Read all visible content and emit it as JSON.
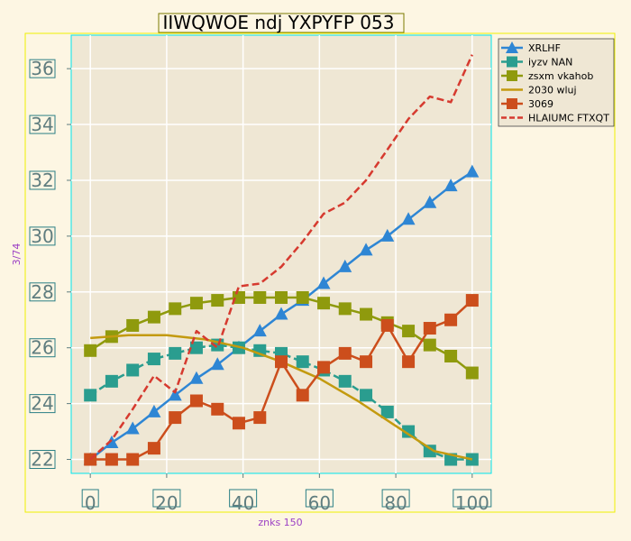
{
  "chart_data": {
    "type": "line",
    "title": "IIWQWOE ndj YXPYFP 053",
    "xlabel": "znks 150",
    "ylabel": "3/74",
    "xlim": [
      -5,
      105
    ],
    "ylim": [
      21.5,
      37.2
    ],
    "xticks": [
      "0",
      "20",
      "40",
      "60",
      "80",
      "100"
    ],
    "yticks": [
      "22",
      "24",
      "26",
      "28",
      "30",
      "32",
      "34",
      "36"
    ],
    "grid": true,
    "legend_position": "top-right",
    "series": [
      {
        "name": "XRLHF",
        "color": "#2e86d4",
        "marker": "triangle",
        "dash": "solid",
        "x": [
          0,
          5.6,
          11.1,
          16.7,
          22.2,
          27.8,
          33.3,
          38.9,
          44.4,
          50,
          55.6,
          61.1,
          66.7,
          72.2,
          77.8,
          83.3,
          88.9,
          94.4,
          100
        ],
        "y": [
          22.0,
          22.6,
          23.1,
          23.7,
          24.3,
          24.9,
          25.4,
          26.0,
          26.6,
          27.2,
          27.7,
          28.3,
          28.9,
          29.5,
          30.0,
          30.6,
          31.2,
          31.8,
          32.3
        ]
      },
      {
        "name": "iyzv NAN",
        "color": "#2a9d8f",
        "marker": "square",
        "dash": "dashed",
        "x": [
          0,
          5.6,
          11.1,
          16.7,
          22.2,
          27.8,
          33.3,
          38.9,
          44.4,
          50,
          55.6,
          61.1,
          66.7,
          72.2,
          77.8,
          83.3,
          88.9,
          94.4,
          100
        ],
        "y": [
          24.3,
          24.8,
          25.2,
          25.6,
          25.8,
          26.0,
          26.1,
          26.0,
          25.9,
          25.8,
          25.5,
          25.2,
          24.8,
          24.3,
          23.7,
          23.0,
          22.3,
          22.0,
          22.0
        ]
      },
      {
        "name": "zsxm vkahob",
        "color": "#8f9a0d",
        "marker": "square",
        "dash": "solid",
        "x": [
          0,
          5.6,
          11.1,
          16.7,
          22.2,
          27.8,
          33.3,
          38.9,
          44.4,
          50,
          55.6,
          61.1,
          66.7,
          72.2,
          77.8,
          83.3,
          88.9,
          94.4,
          100
        ],
        "y": [
          25.9,
          26.4,
          26.8,
          27.1,
          27.4,
          27.6,
          27.7,
          27.8,
          27.8,
          27.8,
          27.8,
          27.6,
          27.4,
          27.2,
          26.9,
          26.6,
          26.1,
          25.7,
          25.1
        ]
      },
      {
        "name": "2030 wluj",
        "color": "#c39a0f",
        "marker": "none",
        "dash": "solid",
        "x": [
          0,
          10,
          20,
          30,
          40,
          50,
          60,
          70,
          80,
          90,
          100
        ],
        "y": [
          26.35,
          26.45,
          26.45,
          26.3,
          26.0,
          25.5,
          24.9,
          24.1,
          23.2,
          22.3,
          22.0
        ]
      },
      {
        "name": "3069",
        "color": "#cc4e1c",
        "marker": "square",
        "dash": "solid",
        "x": [
          0,
          5.6,
          11.1,
          16.7,
          22.2,
          27.8,
          33.3,
          38.9,
          44.4,
          50,
          55.6,
          61.1,
          66.7,
          72.2,
          77.8,
          83.3,
          88.9,
          94.4,
          100
        ],
        "y": [
          22.0,
          22.0,
          22.0,
          22.4,
          23.5,
          24.1,
          23.8,
          23.3,
          23.5,
          25.5,
          24.3,
          25.3,
          25.8,
          25.5,
          26.8,
          25.5,
          26.7,
          27.0,
          27.7
        ]
      },
      {
        "name": "HLAIUMC FTXQT",
        "color": "#d63a2f",
        "marker": "none",
        "dash": "dashed",
        "x": [
          0,
          5.6,
          11.1,
          16.7,
          22.2,
          27.8,
          33.3,
          38.9,
          44.4,
          50,
          55.6,
          61.1,
          66.7,
          72.2,
          77.8,
          83.3,
          88.9,
          94.4,
          100
        ],
        "y": [
          22.0,
          22.7,
          23.8,
          25.0,
          24.4,
          26.6,
          26.0,
          28.2,
          28.3,
          28.9,
          29.8,
          30.8,
          31.2,
          32.0,
          33.1,
          34.2,
          35.0,
          34.8,
          36.5
        ]
      }
    ]
  }
}
